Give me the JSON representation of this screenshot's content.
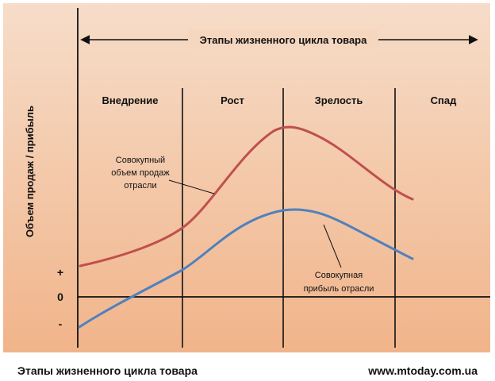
{
  "diagram": {
    "title": "Этапы жизненного цикла товара",
    "y_axis_label": "Объем продаж / прибыль",
    "stages": [
      {
        "name": "Внедрение"
      },
      {
        "name": "Рост"
      },
      {
        "name": "Зрелость"
      },
      {
        "name": "Спад"
      }
    ],
    "sign_plus": "+",
    "sign_zero": "0",
    "sign_minus": "-",
    "sales_curve": {
      "label_lines": [
        "Совокупный",
        "объем продаж",
        "отрасли"
      ],
      "color": "#c0504d"
    },
    "profit_curve": {
      "label_lines": [
        "Совокупная",
        "прибыль отрасли"
      ],
      "color": "#4f81bd"
    },
    "background_gradient": [
      "#f6ddc9",
      "#f1b48a"
    ]
  },
  "footer": {
    "caption": "Этапы жизненного цикла товара",
    "website": "www.mtoday.com.ua"
  }
}
